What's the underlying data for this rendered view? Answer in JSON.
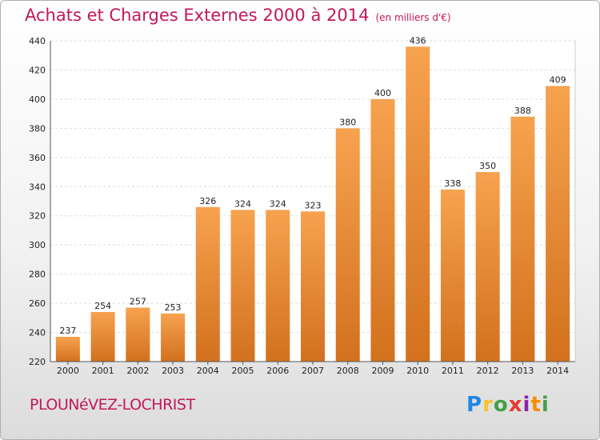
{
  "chart_data": {
    "type": "bar",
    "title": "Achats et Charges Externes 2000 à 2014",
    "subtitle": "(en milliers d'€)",
    "categories": [
      "2000",
      "2001",
      "2002",
      "2003",
      "2004",
      "2005",
      "2006",
      "2007",
      "2008",
      "2009",
      "2010",
      "2011",
      "2012",
      "2013",
      "2014"
    ],
    "values": [
      237,
      254,
      257,
      253,
      326,
      324,
      324,
      323,
      380,
      400,
      436,
      338,
      350,
      388,
      409
    ],
    "ylim": [
      220,
      440
    ],
    "yticks": [
      "220",
      "240",
      "260",
      "280",
      "300",
      "320",
      "340",
      "360",
      "380",
      "400",
      "420",
      "440"
    ],
    "grid": true,
    "legend": "none",
    "bar_color_top": "#f7a24f",
    "bar_color_bottom": "#d2711e"
  },
  "commune": "PLOUNéVEZ-LOCHRIST",
  "logo": {
    "text": "Proxiti",
    "letters": [
      "P",
      "r",
      "o",
      "x",
      "i",
      "t",
      "i"
    ]
  }
}
